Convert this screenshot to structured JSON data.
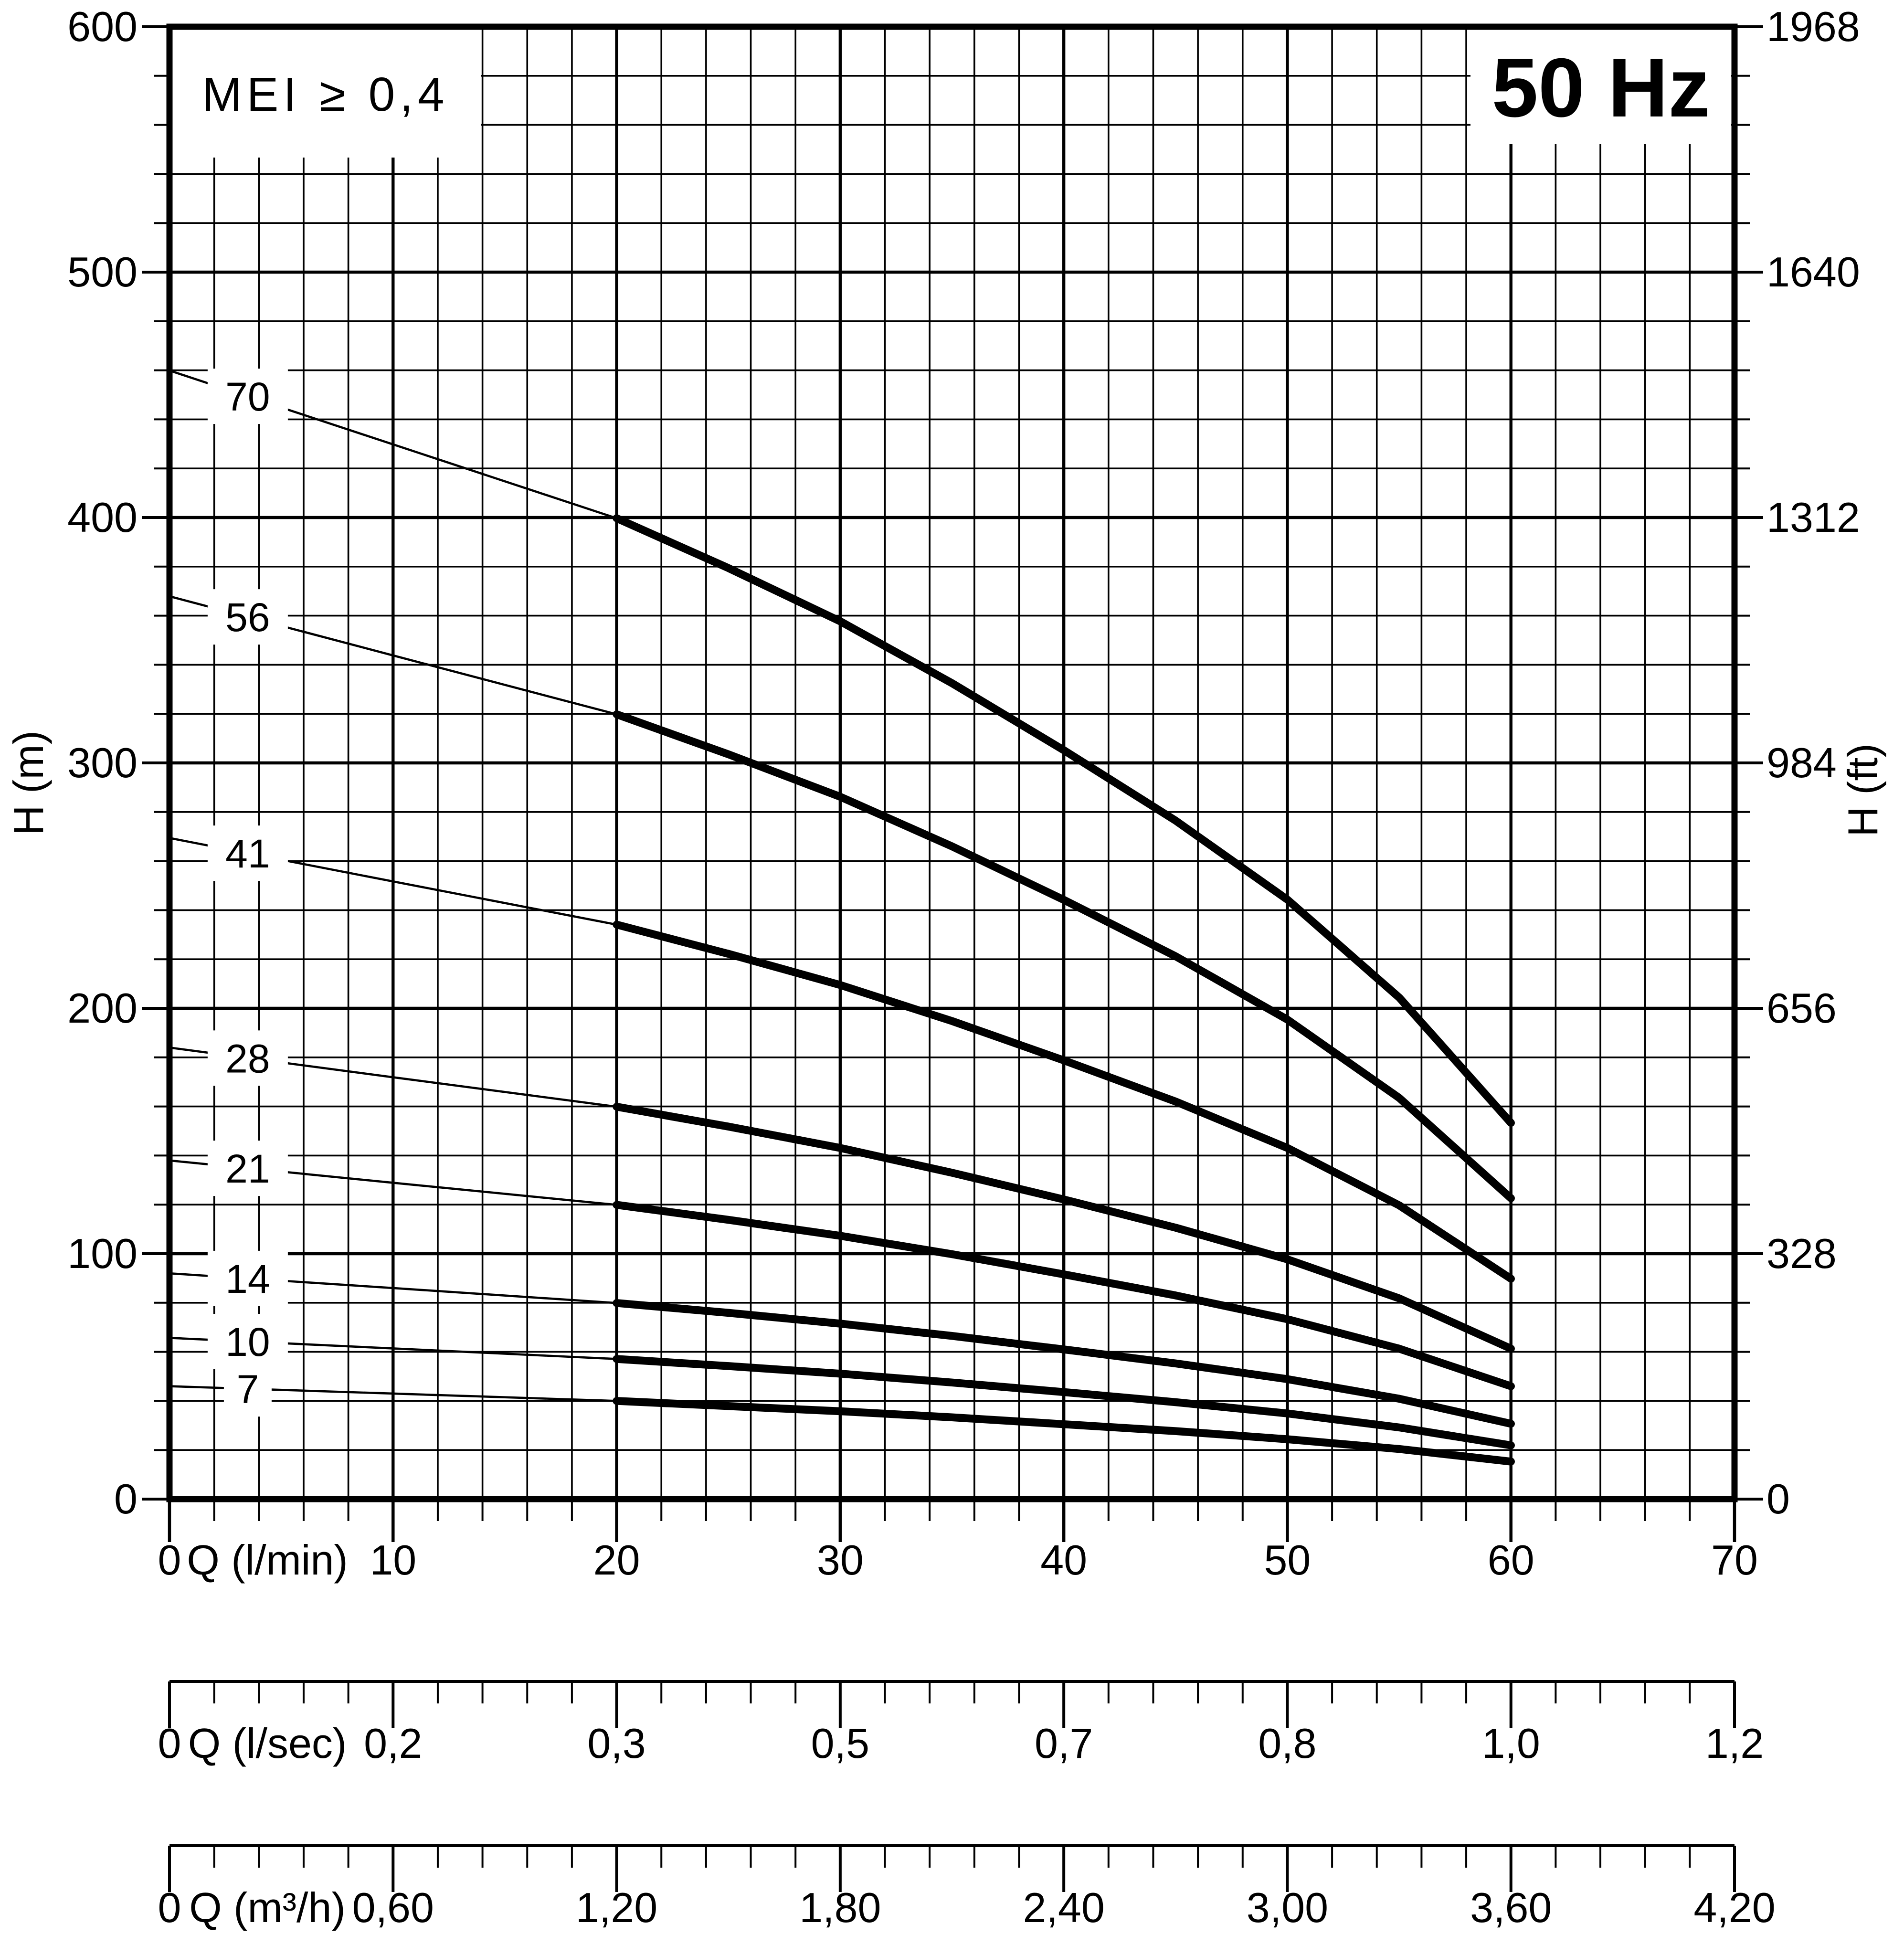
{
  "page": {
    "kind": "pump performance curve figure",
    "frequency_badge": "50 Hz",
    "efficiency_note": "MEI ≥ 0,4"
  },
  "colors": {
    "ink": "#000000",
    "paper": "#ffffff"
  },
  "chart_data": {
    "type": "line",
    "title": "50 Hz",
    "annotation": "MEI ≥ 0,4",
    "grid": {
      "x_minor_step_lmin": 2,
      "x_major_step_lmin": 10,
      "y_minor_step_m": 20,
      "y_major_step_m": 100,
      "grid_on": true
    },
    "axes": {
      "y_left": {
        "label": "H (m)",
        "min": 0,
        "max": 600,
        "tick_labels": [
          "0",
          "100",
          "200",
          "300",
          "400",
          "500",
          "600"
        ],
        "at_m": [
          0,
          100,
          200,
          300,
          400,
          500,
          600
        ]
      },
      "y_right": {
        "label": "H (ft)",
        "tick_labels": [
          "0",
          "328",
          "656",
          "984",
          "1312",
          "1640",
          "1968"
        ],
        "at_m": [
          0,
          100,
          200,
          300,
          400,
          500,
          600
        ]
      },
      "x_main": {
        "label": "Q (l/min)",
        "min": 0,
        "max": 70,
        "tick_labels": [
          "0",
          "10",
          "20",
          "30",
          "40",
          "50",
          "60",
          "70"
        ],
        "at_lmin": [
          0,
          10,
          20,
          30,
          40,
          50,
          60,
          70
        ]
      },
      "x_secondary": [
        {
          "label": "Q (l/sec)",
          "zero_label": "0",
          "tick_labels": [
            "0,2",
            "0,3",
            "0,5",
            "0,7",
            "0,8",
            "1,0",
            "1,2"
          ],
          "at_lmin": [
            10,
            20,
            30,
            40,
            50,
            60,
            70
          ]
        },
        {
          "label": "Q (m³/h)",
          "zero_label": "0",
          "tick_labels": [
            "0,60",
            "1,20",
            "1,80",
            "2,40",
            "3,00",
            "3,60",
            "4,20"
          ],
          "at_lmin": [
            10,
            20,
            30,
            40,
            50,
            60,
            70
          ]
        }
      ]
    },
    "q_values_lmin": [
      0,
      10,
      20,
      25,
      30,
      35,
      40,
      45,
      50,
      55,
      60
    ],
    "thick_from_q_lmin": 20,
    "series_label_q_lmin": 3.5,
    "series": [
      {
        "name": "70",
        "stages": 70,
        "label_head_m": 449.4,
        "head_m": [
          459.9,
          429.8,
          399.7,
          379.4,
          357.7,
          332.5,
          305.2,
          276.5,
          244.3,
          204.4,
          153.3
        ]
      },
      {
        "name": "56",
        "stages": 56,
        "label_head_m": 359.5,
        "head_m": [
          367.9,
          343.8,
          319.8,
          303.5,
          286.2,
          266.0,
          244.2,
          221.2,
          195.4,
          163.5,
          122.6
        ]
      },
      {
        "name": "41",
        "stages": 41,
        "label_head_m": 263.2,
        "head_m": [
          269.4,
          251.7,
          234.1,
          222.2,
          209.5,
          194.8,
          178.8,
          162.0,
          143.1,
          119.7,
          89.8
        ]
      },
      {
        "name": "28",
        "stages": 28,
        "label_head_m": 179.7,
        "head_m": [
          184.0,
          171.9,
          159.9,
          151.8,
          143.1,
          133.0,
          122.1,
          110.6,
          97.7,
          81.8,
          61.3
        ]
      },
      {
        "name": "21",
        "stages": 21,
        "label_head_m": 134.8,
        "head_m": [
          138.0,
          128.9,
          119.9,
          113.8,
          107.3,
          99.8,
          91.6,
          83.0,
          73.3,
          61.3,
          46.0
        ]
      },
      {
        "name": "14",
        "stages": 14,
        "label_head_m": 89.9,
        "head_m": [
          92.0,
          86.0,
          79.9,
          75.9,
          71.5,
          66.5,
          61.0,
          55.3,
          48.9,
          40.9,
          30.7
        ]
      },
      {
        "name": "10",
        "stages": 10,
        "label_head_m": 64.2,
        "head_m": [
          65.7,
          61.4,
          57.1,
          54.2,
          51.1,
          47.5,
          43.6,
          39.5,
          34.9,
          29.2,
          21.9
        ]
      },
      {
        "name": "7",
        "stages": 7,
        "label_head_m": 44.9,
        "head_m": [
          46.0,
          43.0,
          40.0,
          37.9,
          35.8,
          33.3,
          30.5,
          27.7,
          24.4,
          20.4,
          15.3
        ]
      }
    ]
  }
}
